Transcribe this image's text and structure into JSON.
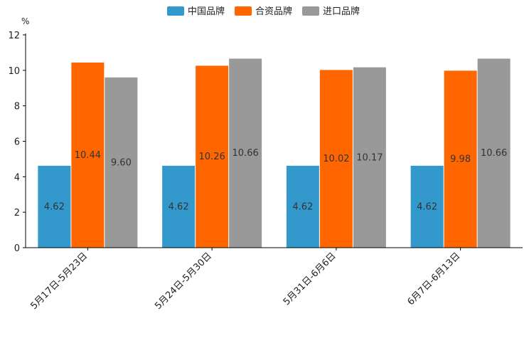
{
  "chart_data": {
    "type": "bar",
    "title": "",
    "ylabel": "%",
    "xlabel": "",
    "ylim": [
      0,
      12
    ],
    "yticks": [
      0,
      2,
      4,
      6,
      8,
      10,
      12
    ],
    "grid": false,
    "legend": "top-center",
    "categories": [
      "5月17日-5月23日",
      "5月24日-5月30日",
      "5月31日-6月6日",
      "6月7日-6月13日"
    ],
    "series": [
      {
        "name": "中国品牌",
        "color": "#3399CC",
        "values": [
          4.62,
          4.62,
          4.62,
          4.62
        ]
      },
      {
        "name": "合资品牌",
        "color": "#FF6600",
        "values": [
          10.44,
          10.26,
          10.02,
          9.98
        ]
      },
      {
        "name": "进口品牌",
        "color": "#999999",
        "values": [
          9.6,
          10.66,
          10.17,
          10.66
        ]
      }
    ]
  }
}
